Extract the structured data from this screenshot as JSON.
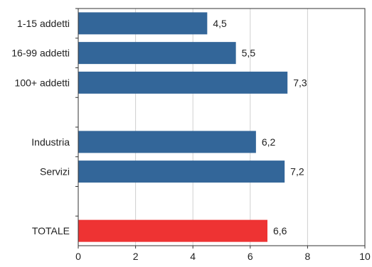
{
  "chart_data": {
    "type": "bar",
    "orientation": "horizontal",
    "title": "",
    "xlabel": "",
    "ylabel": "",
    "xlim": [
      0,
      10
    ],
    "x_ticks": [
      "0",
      "2",
      "4",
      "6",
      "8",
      "10"
    ],
    "grid": "vertical",
    "categories": [
      {
        "label": "1-15 addetti",
        "value": 4.5,
        "value_label": "4,5",
        "color": "#336699"
      },
      {
        "label": "16-99 addetti",
        "value": 5.5,
        "value_label": "5,5",
        "color": "#336699"
      },
      {
        "label": "100+ addetti",
        "value": 7.3,
        "value_label": "7,3",
        "color": "#336699"
      },
      {
        "label": "",
        "value": null,
        "value_label": "",
        "color": ""
      },
      {
        "label": "Industria",
        "value": 6.2,
        "value_label": "6,2",
        "color": "#336699"
      },
      {
        "label": "Servizi",
        "value": 7.2,
        "value_label": "7,2",
        "color": "#336699"
      },
      {
        "label": "",
        "value": null,
        "value_label": "",
        "color": ""
      },
      {
        "label": "TOTALE",
        "value": 6.6,
        "value_label": "6,6",
        "color": "#ee3333"
      }
    ]
  }
}
